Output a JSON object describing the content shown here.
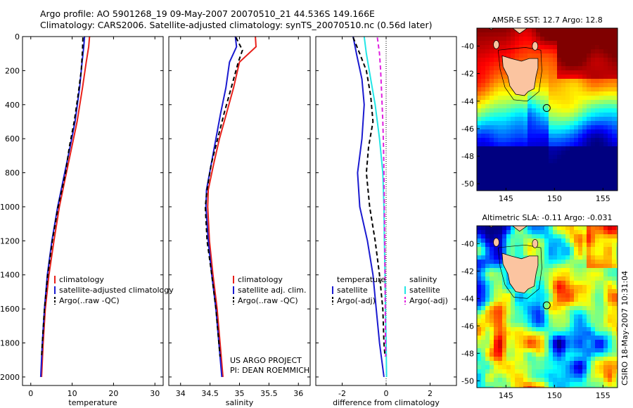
{
  "header": {
    "line1": "Argo profile: AO 5901268_19 09-May-2007 20070510_21 44.536S 149.166E",
    "line2": "Climatology: CARS2006. Satellite-adjusted climatology: synTS_20070510.nc (0.56d later)"
  },
  "credit": {
    "project": "US ARGO PROJECT",
    "pi": "PI: DEAN ROEMMICH",
    "side": "CSIRO 18-May-2007 10:31:04"
  },
  "colors": {
    "red": "#e8201a",
    "blue": "#1a1ad0",
    "black": "#000000",
    "cyan": "#22e6e6",
    "magenta": "#e020e0"
  },
  "chart_data": [
    {
      "type": "line",
      "xlabel": "temperature",
      "xlim": [
        -2,
        32
      ],
      "xticks": [
        "0",
        "10",
        "20",
        "30"
      ],
      "xtick_vals": [
        0,
        10,
        20,
        30
      ],
      "ylim": [
        0,
        2050
      ],
      "yticks": [
        "0",
        "200",
        "400",
        "600",
        "800",
        "1000",
        "1200",
        "1400",
        "1600",
        "1800",
        "2000"
      ],
      "ytick_vals": [
        0,
        200,
        400,
        600,
        800,
        1000,
        1200,
        1400,
        1600,
        1800,
        2000
      ],
      "legend": [
        "climatology",
        "satellite-adjusted climatology",
        "Argo(..raw -QC)"
      ],
      "series": [
        {
          "name": "climatology",
          "color": "red",
          "dash": false,
          "points": [
            [
              14.2,
              0
            ],
            [
              14.0,
              60
            ],
            [
              13.4,
              150
            ],
            [
              12.5,
              300
            ],
            [
              11.2,
              500
            ],
            [
              9.9,
              650
            ],
            [
              8.6,
              800
            ],
            [
              6.9,
              1000
            ],
            [
              5.6,
              1200
            ],
            [
              4.4,
              1400
            ],
            [
              3.5,
              1600
            ],
            [
              3.0,
              1800
            ],
            [
              2.6,
              2000
            ]
          ]
        },
        {
          "name": "satellite-adjusted climatology",
          "color": "blue",
          "dash": false,
          "points": [
            [
              13.0,
              0
            ],
            [
              12.8,
              60
            ],
            [
              12.4,
              150
            ],
            [
              11.8,
              300
            ],
            [
              10.7,
              500
            ],
            [
              9.5,
              650
            ],
            [
              8.2,
              800
            ],
            [
              6.5,
              1000
            ],
            [
              5.1,
              1200
            ],
            [
              4.0,
              1400
            ],
            [
              3.3,
              1600
            ],
            [
              2.8,
              1800
            ],
            [
              2.4,
              2000
            ]
          ]
        },
        {
          "name": "Argo(..raw -QC)",
          "color": "black",
          "dash": true,
          "points": [
            [
              12.6,
              5
            ],
            [
              12.5,
              80
            ],
            [
              12.2,
              200
            ],
            [
              11.4,
              350
            ],
            [
              10.5,
              500
            ],
            [
              9.3,
              650
            ],
            [
              8.4,
              800
            ],
            [
              6.6,
              1000
            ],
            [
              5.2,
              1200
            ],
            [
              4.1,
              1400
            ],
            [
              3.3,
              1600
            ],
            [
              2.8,
              1800
            ],
            [
              2.6,
              1880
            ]
          ]
        }
      ]
    },
    {
      "type": "line",
      "xlabel": "salinity",
      "xlim": [
        33.8,
        36.2
      ],
      "xticks": [
        "34",
        "34.5",
        "35",
        "35.5",
        "36"
      ],
      "xtick_vals": [
        34,
        34.5,
        35,
        35.5,
        36
      ],
      "ylim": [
        0,
        2050
      ],
      "legend": [
        "climatology",
        "satellite adj. clim.",
        "Argo(..raw -QC)"
      ],
      "series": [
        {
          "name": "climatology",
          "color": "red",
          "dash": false,
          "points": [
            [
              35.27,
              0
            ],
            [
              35.28,
              60
            ],
            [
              35.0,
              150
            ],
            [
              34.9,
              300
            ],
            [
              34.78,
              450
            ],
            [
              34.66,
              600
            ],
            [
              34.56,
              750
            ],
            [
              34.47,
              900
            ],
            [
              34.46,
              1000
            ],
            [
              34.49,
              1200
            ],
            [
              34.55,
              1400
            ],
            [
              34.62,
              1600
            ],
            [
              34.67,
              1800
            ],
            [
              34.72,
              2000
            ]
          ]
        },
        {
          "name": "satellite adj. clim.",
          "color": "blue",
          "dash": false,
          "points": [
            [
              34.93,
              0
            ],
            [
              34.95,
              60
            ],
            [
              34.83,
              150
            ],
            [
              34.77,
              300
            ],
            [
              34.68,
              450
            ],
            [
              34.6,
              600
            ],
            [
              34.52,
              750
            ],
            [
              34.44,
              900
            ],
            [
              34.43,
              1000
            ],
            [
              34.47,
              1200
            ],
            [
              34.53,
              1400
            ],
            [
              34.6,
              1600
            ],
            [
              34.65,
              1800
            ],
            [
              34.7,
              2000
            ]
          ]
        },
        {
          "name": "Argo(..raw -QC)",
          "color": "black",
          "dash": true,
          "points": [
            [
              34.94,
              5
            ],
            [
              35.05,
              80
            ],
            [
              34.98,
              150
            ],
            [
              34.86,
              300
            ],
            [
              34.74,
              450
            ],
            [
              34.63,
              600
            ],
            [
              34.52,
              750
            ],
            [
              34.45,
              900
            ],
            [
              34.42,
              1000
            ],
            [
              34.45,
              1200
            ],
            [
              34.53,
              1400
            ],
            [
              34.6,
              1600
            ],
            [
              34.65,
              1800
            ],
            [
              34.67,
              1880
            ]
          ]
        }
      ]
    },
    {
      "type": "line",
      "xlabel": "difference from climatology",
      "xlim": [
        -3.2,
        3.2
      ],
      "xticks": [
        "-2",
        "0",
        "2"
      ],
      "xtick_vals": [
        -2,
        0,
        2
      ],
      "ylim": [
        0,
        2050
      ],
      "legend_left_title": "temperature",
      "legend_right_title": "salinity",
      "legend": [
        "satellite",
        "Argo(-adj)",
        "satellite",
        "Argo(-adj)"
      ],
      "series": [
        {
          "name": "satellite",
          "color": "blue",
          "dash": false,
          "points": [
            [
              -1.5,
              0
            ],
            [
              -1.35,
              100
            ],
            [
              -1.1,
              250
            ],
            [
              -1.0,
              400
            ],
            [
              -1.1,
              600
            ],
            [
              -1.3,
              800
            ],
            [
              -1.2,
              1000
            ],
            [
              -0.85,
              1200
            ],
            [
              -0.6,
              1400
            ],
            [
              -0.45,
              1600
            ],
            [
              -0.3,
              1800
            ],
            [
              -0.1,
              2000
            ]
          ]
        },
        {
          "name": "Argo(-adj)",
          "color": "black",
          "dash": true,
          "points": [
            [
              -1.5,
              5
            ],
            [
              -1.2,
              100
            ],
            [
              -0.9,
              200
            ],
            [
              -0.7,
              350
            ],
            [
              -0.6,
              500
            ],
            [
              -0.8,
              650
            ],
            [
              -0.9,
              800
            ],
            [
              -0.75,
              1000
            ],
            [
              -0.5,
              1200
            ],
            [
              -0.3,
              1400
            ],
            [
              -0.15,
              1600
            ],
            [
              -0.1,
              1800
            ],
            [
              -0.05,
              1880
            ]
          ]
        },
        {
          "name": "satellite",
          "color": "cyan",
          "dash": false,
          "points": [
            [
              -1.0,
              0
            ],
            [
              -0.9,
              100
            ],
            [
              -0.7,
              250
            ],
            [
              -0.5,
              400
            ],
            [
              -0.3,
              600
            ],
            [
              -0.15,
              800
            ],
            [
              -0.1,
              1000
            ],
            [
              -0.08,
              1200
            ],
            [
              -0.05,
              1400
            ],
            [
              -0.03,
              1600
            ],
            [
              0.0,
              1800
            ],
            [
              0.02,
              2000
            ]
          ]
        },
        {
          "name": "Argo(-adj)",
          "color": "magenta",
          "dash": true,
          "points": [
            [
              -0.4,
              5
            ],
            [
              -0.3,
              100
            ],
            [
              -0.25,
              200
            ],
            [
              -0.2,
              350
            ],
            [
              -0.15,
              500
            ],
            [
              -0.12,
              650
            ],
            [
              -0.1,
              800
            ],
            [
              -0.08,
              1000
            ],
            [
              -0.06,
              1200
            ],
            [
              -0.05,
              1400
            ],
            [
              -0.04,
              1600
            ],
            [
              -0.03,
              1800
            ],
            [
              -0.02,
              1880
            ]
          ]
        }
      ]
    },
    {
      "type": "heatmap",
      "title": "AMSR-E SST: 12.7 Argo: 12.8",
      "xlim": [
        142,
        156.5
      ],
      "ylim": [
        -50.5,
        -38.7
      ],
      "xticks": [
        "145",
        "150",
        "155"
      ],
      "xtick_vals": [
        145,
        150,
        155
      ],
      "yticks": [
        "-40",
        "-42",
        "-44",
        "-46",
        "-48",
        "-50"
      ],
      "ytick_vals": [
        -40,
        -42,
        -44,
        -46,
        -48,
        -50
      ],
      "marker": [
        149.2,
        -44.5
      ]
    },
    {
      "type": "heatmap",
      "title": "Altimetric SLA: -0.11 Argo: -0.031",
      "xlim": [
        142,
        156.5
      ],
      "ylim": [
        -50.5,
        -38.7
      ],
      "xticks": [
        "145",
        "150",
        "155"
      ],
      "xtick_vals": [
        145,
        150,
        155
      ],
      "yticks": [
        "-40",
        "-42",
        "-44",
        "-46",
        "-48",
        "-50"
      ],
      "ytick_vals": [
        -40,
        -42,
        -44,
        -46,
        -48,
        -50
      ],
      "marker": [
        149.2,
        -44.5
      ]
    }
  ]
}
